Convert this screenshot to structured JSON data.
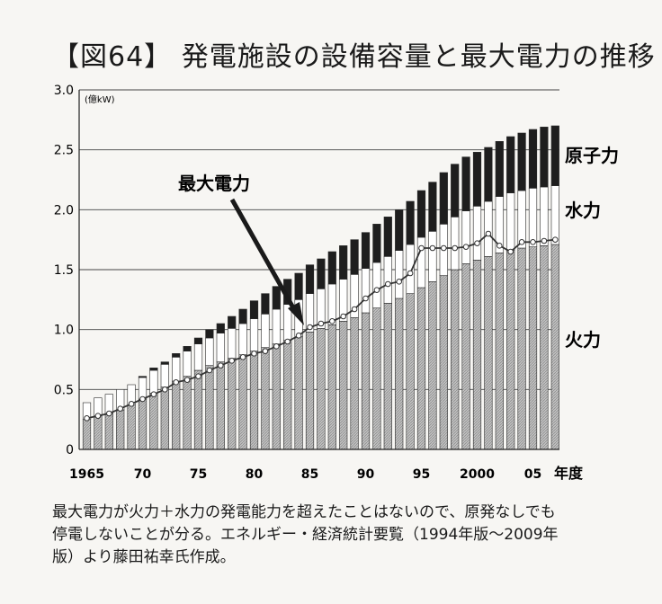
{
  "figure_title": "【図64】 発電施設の設備容量と最大電力の推移",
  "caption_lines": [
    "最大電力が火力＋水力の発電能力を超えたことはないので、原発なしでも",
    "停電しないことが分る。エネルギー・経済統計要覧（1994年版〜2009年",
    "版）より藤田祐幸氏作成。"
  ],
  "colors": {
    "thermal": "#b5b5b5",
    "hydro": "#ffffff",
    "nuclear": "#1e1e1e",
    "peak_line": "#333333",
    "grid": "#444444"
  },
  "chart_data": {
    "type": "bar",
    "stacked": true,
    "title": "【図64】 発電施設の設備容量と最大電力の推移",
    "xlabel": "年度",
    "ylabel": "(億kW)",
    "ylim": [
      0,
      3.0
    ],
    "yticks": [
      "0",
      "0.5",
      "1.0",
      "1.5",
      "2.0",
      "2.5",
      "3.0"
    ],
    "ytick_values": [
      0,
      0.5,
      1.0,
      1.5,
      2.0,
      2.5,
      3.0
    ],
    "xtick_labels": [
      {
        "year": 1965,
        "label": "1965"
      },
      {
        "year": 1970,
        "label": "70"
      },
      {
        "year": 1975,
        "label": "75"
      },
      {
        "year": 1980,
        "label": "80"
      },
      {
        "year": 1985,
        "label": "85"
      },
      {
        "year": 1990,
        "label": "90"
      },
      {
        "year": 1995,
        "label": "95"
      },
      {
        "year": 2000,
        "label": "2000"
      },
      {
        "year": 2005,
        "label": "05"
      }
    ],
    "grid": true,
    "years": [
      1965,
      1966,
      1967,
      1968,
      1969,
      1970,
      1971,
      1972,
      1973,
      1974,
      1975,
      1976,
      1977,
      1978,
      1979,
      1980,
      1981,
      1982,
      1983,
      1984,
      1985,
      1986,
      1987,
      1988,
      1989,
      1990,
      1991,
      1992,
      1993,
      1994,
      1995,
      1996,
      1997,
      1998,
      1999,
      2000,
      2001,
      2002,
      2003,
      2004,
      2005,
      2006,
      2007
    ],
    "series": [
      {
        "name": "火力",
        "values": [
          0.25,
          0.28,
          0.3,
          0.33,
          0.37,
          0.42,
          0.47,
          0.52,
          0.57,
          0.61,
          0.66,
          0.7,
          0.73,
          0.76,
          0.79,
          0.82,
          0.85,
          0.88,
          0.91,
          0.94,
          0.98,
          1.01,
          1.04,
          1.07,
          1.1,
          1.14,
          1.18,
          1.22,
          1.26,
          1.3,
          1.35,
          1.4,
          1.45,
          1.5,
          1.55,
          1.58,
          1.61,
          1.64,
          1.66,
          1.68,
          1.69,
          1.7,
          1.71
        ]
      },
      {
        "name": "水力",
        "values": [
          0.14,
          0.15,
          0.16,
          0.17,
          0.17,
          0.18,
          0.19,
          0.19,
          0.2,
          0.21,
          0.22,
          0.23,
          0.24,
          0.25,
          0.26,
          0.27,
          0.28,
          0.29,
          0.3,
          0.31,
          0.32,
          0.33,
          0.34,
          0.35,
          0.36,
          0.37,
          0.38,
          0.39,
          0.4,
          0.41,
          0.42,
          0.42,
          0.43,
          0.44,
          0.44,
          0.45,
          0.46,
          0.47,
          0.48,
          0.48,
          0.49,
          0.49,
          0.49
        ]
      },
      {
        "name": "原子力",
        "values": [
          0,
          0,
          0,
          0,
          0,
          0.01,
          0.02,
          0.02,
          0.03,
          0.04,
          0.05,
          0.07,
          0.08,
          0.1,
          0.12,
          0.15,
          0.17,
          0.19,
          0.21,
          0.22,
          0.24,
          0.25,
          0.27,
          0.28,
          0.29,
          0.3,
          0.32,
          0.33,
          0.34,
          0.36,
          0.39,
          0.41,
          0.43,
          0.44,
          0.45,
          0.45,
          0.45,
          0.46,
          0.47,
          0.48,
          0.49,
          0.5,
          0.5
        ]
      }
    ],
    "peak_demand": {
      "name": "最大電力",
      "values": [
        0.26,
        0.28,
        0.3,
        0.34,
        0.38,
        0.42,
        0.46,
        0.5,
        0.56,
        0.58,
        0.61,
        0.66,
        0.7,
        0.74,
        0.77,
        0.8,
        0.82,
        0.86,
        0.9,
        0.95,
        1.02,
        1.05,
        1.07,
        1.11,
        1.17,
        1.26,
        1.33,
        1.38,
        1.4,
        1.47,
        1.68,
        1.68,
        1.68,
        1.68,
        1.69,
        1.72,
        1.8,
        1.7,
        1.65,
        1.73,
        1.73,
        1.74,
        1.75
      ]
    },
    "annotations": {
      "peak_label": "最大電力",
      "legend_nuclear": "原子力",
      "legend_hydro": "水力",
      "legend_thermal": "火力"
    }
  }
}
